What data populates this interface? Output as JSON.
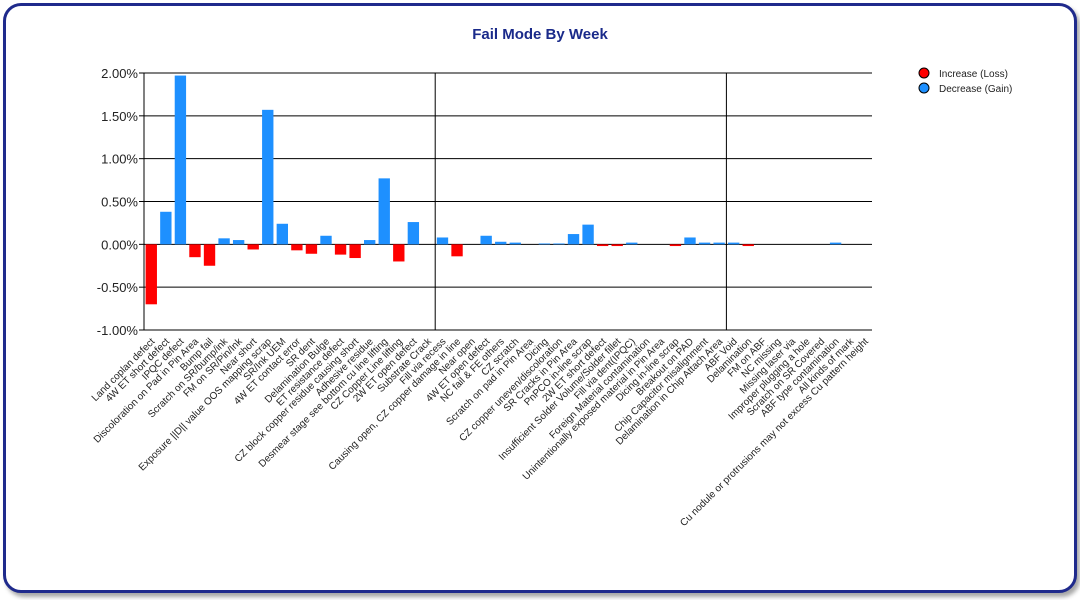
{
  "chart_data": {
    "type": "bar",
    "title": "Fail Mode By Week",
    "ylim": [
      -0.01,
      0.02
    ],
    "y_tick_labels": [
      "2.00%",
      "1.50%",
      "1.00%",
      "0.50%",
      "0.00%",
      "-0.50%",
      "-1.00%"
    ],
    "legend_position": "top-right",
    "grid": true,
    "colors": {
      "loss": "#ff0000",
      "gain": "#1e90ff"
    },
    "series": [
      {
        "name": "Increase (Loss)",
        "color": "#ff0000"
      },
      {
        "name": "Decrease (Gain)",
        "color": "#1e90ff"
      }
    ],
    "categories": [
      "Land coplan defect",
      "4W ET short defect",
      "IPQC defect",
      "Discoloration on Pad in Pin Area",
      "Bump fail",
      "Scratch on SR/bump/ink",
      "FM on SR/Pin/Ink",
      "Near short",
      "Exposure ||D|| value OOS mapping scrap",
      "SR/Ink UEM",
      "4W ET contact error",
      "SR dent",
      "Delamination Bulge",
      "ET resistance defect",
      "CZ block copper residue causing short",
      "Adhesive residue",
      "Desmear stage see bottom cu line lifting",
      "CZ Copper Line lifting",
      "2W ET open defect",
      "Substrate Crack",
      "Fill via recess",
      "Causing open, CZ copper damage in line",
      "Near open",
      "4W ET open defect",
      "NC fail & FE others",
      "CZ scratch",
      "Scratch on pad in Pin Area",
      "Dicing",
      "CZ copper uneven/discoloration",
      "SR Cracks in Pin Area",
      "PnPCO in-line scrap",
      "2W ET short defect",
      "Insufficient Solder Volume/Solder fillet",
      "Fill via dent(IPQC)",
      "Foreign Material contamination",
      "Unintentionally exposed material in Pin Area",
      "Dicing in-line scrap",
      "Breakout on PAD",
      "Chip Capacitor misalignment",
      "Delamination in Chip Attach Area",
      "ABF Void",
      "Delamination",
      "FM on ABF",
      "NC missing",
      "Missing laser via",
      "Improper plugging a hole",
      "Scratch on SR Covered",
      "ABF type contamination",
      "All kinds of mark",
      "Cu nodule or protrusions may not excess Cu pattern height"
    ],
    "values": [
      -0.007,
      0.0038,
      0.0197,
      -0.0015,
      -0.0025,
      0.0007,
      0.0005,
      -0.0006,
      0.0157,
      0.0024,
      -0.0007,
      -0.0011,
      0.001,
      -0.0012,
      -0.0016,
      0.0005,
      0.0077,
      -0.002,
      0.0026,
      0.0,
      0.0008,
      -0.0014,
      0.0,
      0.001,
      0.0003,
      0.0002,
      0.0,
      0.0001,
      0.0001,
      0.0012,
      0.0023,
      -0.0002,
      -0.0002,
      0.0002,
      0.0,
      0.0,
      -0.0002,
      0.0008,
      0.0002,
      0.0002,
      0.0002,
      -0.0002,
      0.0,
      0.0,
      0.0,
      0.0,
      0.0,
      0.0002,
      0.0,
      0.0
    ],
    "week_divider_after_index": [
      19,
      39
    ]
  }
}
